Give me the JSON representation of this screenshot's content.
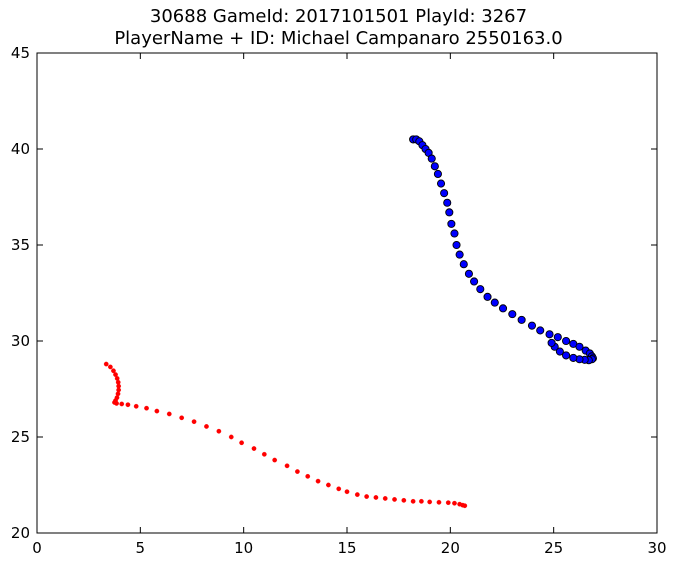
{
  "chart_data": {
    "type": "scatter",
    "title_lines": [
      "30688 GameId: 2017101501 PlayId: 3267",
      "PlayerName + ID: Michael Campanaro 2550163.0"
    ],
    "xlabel": "",
    "ylabel": "",
    "xlim": [
      0,
      30
    ],
    "ylim": [
      20,
      45
    ],
    "xticks": [
      0,
      5,
      10,
      15,
      20,
      25,
      30
    ],
    "yticks": [
      20,
      25,
      30,
      35,
      40,
      45
    ],
    "grid": false,
    "series": [
      {
        "color": "#0000ff",
        "edge_color": "#000000",
        "marker": "circle-large",
        "points": [
          [
            18.2,
            40.5
          ],
          [
            18.35,
            40.5
          ],
          [
            18.5,
            40.4
          ],
          [
            18.65,
            40.2
          ],
          [
            18.8,
            40.0
          ],
          [
            18.95,
            39.8
          ],
          [
            19.1,
            39.5
          ],
          [
            19.25,
            39.1
          ],
          [
            19.4,
            38.7
          ],
          [
            19.55,
            38.2
          ],
          [
            19.7,
            37.7
          ],
          [
            19.85,
            37.2
          ],
          [
            19.95,
            36.7
          ],
          [
            20.05,
            36.1
          ],
          [
            20.2,
            35.6
          ],
          [
            20.3,
            35.0
          ],
          [
            20.45,
            34.5
          ],
          [
            20.65,
            34.0
          ],
          [
            20.9,
            33.5
          ],
          [
            21.15,
            33.1
          ],
          [
            21.45,
            32.7
          ],
          [
            21.8,
            32.3
          ],
          [
            22.15,
            32.0
          ],
          [
            22.55,
            31.7
          ],
          [
            23.0,
            31.4
          ],
          [
            23.45,
            31.1
          ],
          [
            23.95,
            30.8
          ],
          [
            24.35,
            30.55
          ],
          [
            24.8,
            30.35
          ],
          [
            25.2,
            30.2
          ],
          [
            25.6,
            30.0
          ],
          [
            25.95,
            29.85
          ],
          [
            26.25,
            29.7
          ],
          [
            26.55,
            29.5
          ],
          [
            26.75,
            29.35
          ],
          [
            26.85,
            29.2
          ],
          [
            26.9,
            29.1
          ],
          [
            26.85,
            29.05
          ],
          [
            26.7,
            29.0
          ],
          [
            26.5,
            29.02
          ],
          [
            26.25,
            29.05
          ],
          [
            25.95,
            29.12
          ],
          [
            25.6,
            29.25
          ],
          [
            25.3,
            29.45
          ],
          [
            25.05,
            29.7
          ],
          [
            24.9,
            29.9
          ]
        ]
      },
      {
        "color": "#ff0000",
        "edge_color": "#ff0000",
        "marker": "dot-small",
        "points": [
          [
            3.35,
            28.8
          ],
          [
            3.55,
            28.65
          ],
          [
            3.7,
            28.45
          ],
          [
            3.8,
            28.25
          ],
          [
            3.88,
            28.05
          ],
          [
            3.93,
            27.85
          ],
          [
            3.95,
            27.65
          ],
          [
            3.95,
            27.45
          ],
          [
            3.92,
            27.25
          ],
          [
            3.87,
            27.05
          ],
          [
            3.8,
            26.9
          ],
          [
            3.75,
            26.8
          ],
          [
            3.85,
            26.75
          ],
          [
            4.1,
            26.72
          ],
          [
            4.4,
            26.68
          ],
          [
            4.8,
            26.6
          ],
          [
            5.3,
            26.5
          ],
          [
            5.8,
            26.35
          ],
          [
            6.4,
            26.2
          ],
          [
            7.0,
            26.0
          ],
          [
            7.6,
            25.8
          ],
          [
            8.2,
            25.55
          ],
          [
            8.8,
            25.3
          ],
          [
            9.4,
            25.0
          ],
          [
            9.9,
            24.7
          ],
          [
            10.5,
            24.4
          ],
          [
            11.0,
            24.1
          ],
          [
            11.5,
            23.8
          ],
          [
            12.1,
            23.5
          ],
          [
            12.6,
            23.2
          ],
          [
            13.1,
            22.95
          ],
          [
            13.6,
            22.7
          ],
          [
            14.1,
            22.5
          ],
          [
            14.6,
            22.3
          ],
          [
            15.0,
            22.15
          ],
          [
            15.5,
            22.0
          ],
          [
            15.95,
            21.9
          ],
          [
            16.4,
            21.85
          ],
          [
            16.85,
            21.8
          ],
          [
            17.3,
            21.75
          ],
          [
            17.75,
            21.7
          ],
          [
            18.2,
            21.65
          ],
          [
            18.6,
            21.65
          ],
          [
            19.0,
            21.62
          ],
          [
            19.45,
            21.6
          ],
          [
            19.9,
            21.58
          ],
          [
            20.2,
            21.55
          ],
          [
            20.45,
            21.5
          ],
          [
            20.6,
            21.45
          ],
          [
            20.7,
            21.42
          ]
        ]
      }
    ]
  }
}
